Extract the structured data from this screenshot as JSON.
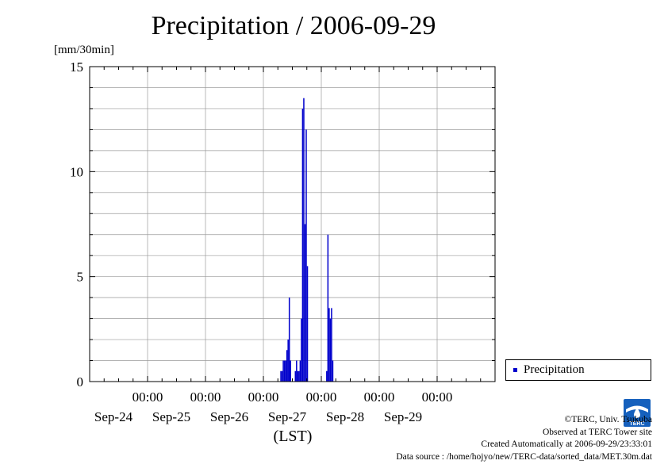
{
  "chart_data": {
    "type": "bar",
    "title": "Precipitation / 2006-09-29",
    "ylabel": "[mm/30min]",
    "xlabel": "(LST)",
    "ylim": [
      0,
      15
    ],
    "xlim": [
      "2006-09-23 00:00",
      "2006-09-30 00:00"
    ],
    "yticks": [
      0,
      5,
      10,
      15
    ],
    "xticks": [
      {
        "time": "00:00",
        "date": "Sep-24"
      },
      {
        "time": "00:00",
        "date": "Sep-25"
      },
      {
        "time": "00:00",
        "date": "Sep-26"
      },
      {
        "time": "00:00",
        "date": "Sep-27"
      },
      {
        "time": "00:00",
        "date": "Sep-28"
      },
      {
        "time": "00:00",
        "date": "Sep-29"
      }
    ],
    "grid": true,
    "legend": "bottom-right, outside",
    "series": [
      {
        "name": "Precipitation",
        "color": "#0000cc",
        "points": [
          {
            "t": "2006-09-26 07:00",
            "v": 0.5
          },
          {
            "t": "2006-09-26 07:30",
            "v": 0.5
          },
          {
            "t": "2006-09-26 08:00",
            "v": 1.0
          },
          {
            "t": "2006-09-26 08:30",
            "v": 1.0
          },
          {
            "t": "2006-09-26 09:00",
            "v": 1.0
          },
          {
            "t": "2006-09-26 09:30",
            "v": 1.5
          },
          {
            "t": "2006-09-26 10:00",
            "v": 2.0
          },
          {
            "t": "2006-09-26 10:30",
            "v": 4.0
          },
          {
            "t": "2006-09-26 11:00",
            "v": 1.0
          },
          {
            "t": "2006-09-26 13:00",
            "v": 0.5
          },
          {
            "t": "2006-09-26 13:30",
            "v": 1.0
          },
          {
            "t": "2006-09-26 14:00",
            "v": 0.5
          },
          {
            "t": "2006-09-26 14:30",
            "v": 0.5
          },
          {
            "t": "2006-09-26 15:00",
            "v": 1.0
          },
          {
            "t": "2006-09-26 15:30",
            "v": 3.0
          },
          {
            "t": "2006-09-26 16:00",
            "v": 13.0
          },
          {
            "t": "2006-09-26 16:30",
            "v": 13.5
          },
          {
            "t": "2006-09-26 17:00",
            "v": 7.5
          },
          {
            "t": "2006-09-26 17:30",
            "v": 12.0
          },
          {
            "t": "2006-09-26 18:00",
            "v": 5.5
          },
          {
            "t": "2006-09-27 02:00",
            "v": 0.5
          },
          {
            "t": "2006-09-27 02:30",
            "v": 7.0
          },
          {
            "t": "2006-09-27 03:00",
            "v": 3.5
          },
          {
            "t": "2006-09-27 03:30",
            "v": 3.0
          },
          {
            "t": "2006-09-27 04:00",
            "v": 3.5
          },
          {
            "t": "2006-09-27 04:30",
            "v": 1.0
          }
        ]
      }
    ]
  },
  "credits": {
    "copyright": "©TERC, Univ. Tsukuba",
    "observed": "Observed at TERC Tower site",
    "created": "Created Automatically at 2006-09-29/23:33:01",
    "source": "Data source : /home/hojyo/new/TERC-data/sorted_data/MET.30m.dat"
  },
  "logo": {
    "text": "TERC",
    "color": "#1560bd"
  }
}
